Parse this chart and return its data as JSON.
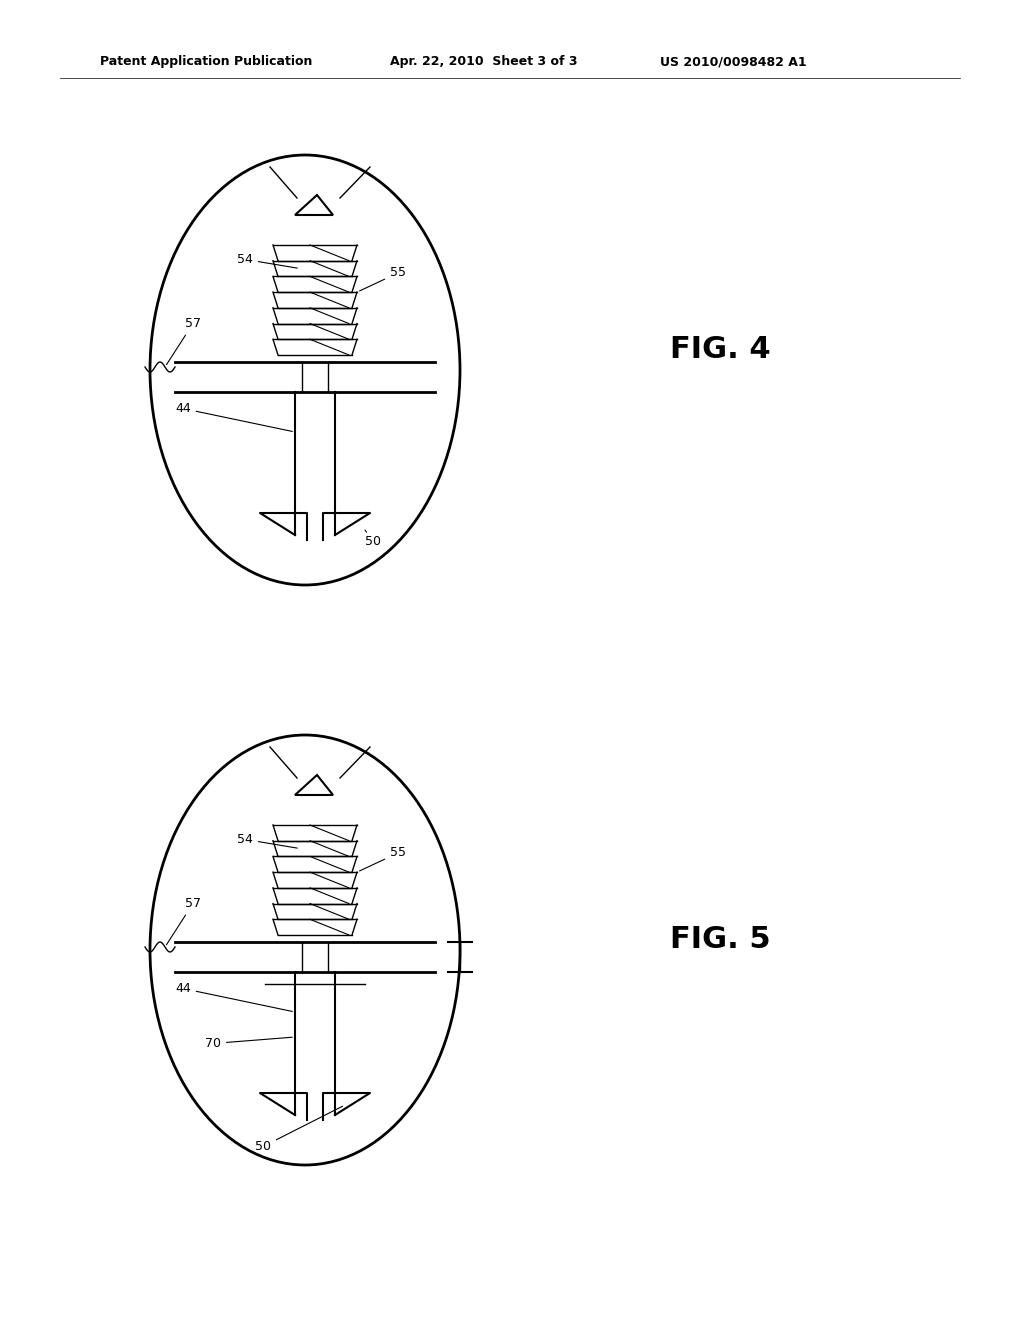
{
  "bg_color": "#ffffff",
  "header_left": "Patent Application Publication",
  "header_mid": "Apr. 22, 2010  Sheet 3 of 3",
  "header_right": "US 2010/0098482 A1",
  "fig4_label": "FIG. 4",
  "fig5_label": "FIG. 5",
  "line_color": "#000000",
  "label_color": "#000000",
  "label_fontsize": 9,
  "fig_label_fontsize": 22,
  "header_fontsize": 9
}
